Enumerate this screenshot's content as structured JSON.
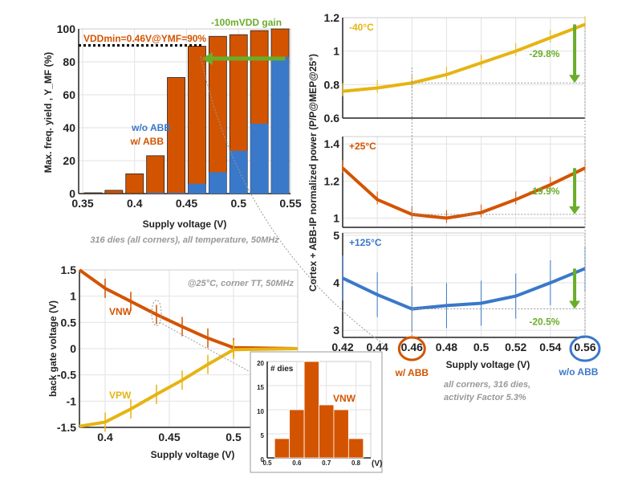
{
  "colors": {
    "orange": "#d35400",
    "blue": "#3a78c9",
    "yellow": "#e6b412",
    "green": "#6aad2a",
    "grid": "#e2e2e2"
  },
  "chart_data": [
    {
      "type": "bar",
      "id": "yield",
      "ylabel": "Max. freq. yield , Y_MF (%)",
      "xlabel": "Supply voltage (V)",
      "xlim": [
        0.35,
        0.55
      ],
      "ylim": [
        0,
        100
      ],
      "xticks": [
        0.35,
        0.4,
        0.45,
        0.5,
        0.55
      ],
      "yticks": [
        0,
        20,
        40,
        60,
        80,
        100
      ],
      "categories": [
        0.36,
        0.38,
        0.4,
        0.42,
        0.44,
        0.46,
        0.48,
        0.5,
        0.52,
        0.54
      ],
      "series": [
        {
          "name": "w/ ABB",
          "values": [
            0.5,
            2,
            12,
            23,
            70.5,
            89.5,
            95.5,
            96.5,
            99,
            100
          ]
        },
        {
          "name": "w/o ABB",
          "values": [
            0,
            0,
            0,
            0.5,
            0.5,
            6,
            13,
            26,
            42.5,
            83
          ]
        }
      ],
      "annotations": {
        "vddmin": "VDDmin=0.46V@YMF=90%",
        "gain": "-100mVDD gain",
        "footnote": "316 dies (all corners), all temperature, 50MHz"
      },
      "threshold": 90,
      "grid": true
    },
    {
      "type": "line",
      "id": "power",
      "ylabel": "Cortex + ABB-IP normalized power (P/P@MEP@25°)",
      "xlabel": "Supply voltage (V)",
      "xlim": [
        0.42,
        0.56
      ],
      "xticks": [
        0.42,
        0.44,
        0.46,
        0.48,
        0.5,
        0.52,
        0.54,
        0.56
      ],
      "x": [
        0.42,
        0.44,
        0.46,
        0.48,
        0.5,
        0.52,
        0.54,
        0.56
      ],
      "panels": [
        {
          "name": "-40°C",
          "ylim": [
            0.6,
            1.2
          ],
          "yticks": [
            0.6,
            0.8,
            1,
            1.2
          ],
          "values": [
            0.76,
            0.78,
            0.81,
            0.86,
            0.93,
            1.0,
            1.08,
            1.16
          ],
          "reduction": "-29.8%",
          "color": "yellow"
        },
        {
          "name": "+25°C",
          "ylim": [
            0.95,
            1.44
          ],
          "yticks": [
            1,
            1.2,
            1.4
          ],
          "values": [
            1.27,
            1.1,
            1.02,
            1.0,
            1.03,
            1.1,
            1.18,
            1.27
          ],
          "reduction": "-19.9%",
          "color": "orange"
        },
        {
          "name": "+125°C",
          "ylim": [
            2.85,
            5.05
          ],
          "yticks": [
            3,
            4,
            5
          ],
          "values": [
            4.1,
            3.75,
            3.45,
            3.52,
            3.57,
            3.72,
            4.0,
            4.3
          ],
          "reduction": "-20.5%",
          "color": "blue"
        }
      ],
      "annotations": {
        "with_abb": "w/ ABB",
        "without_abb": "w/o ABB",
        "note1": "all corners, 316 dies,",
        "note2": "activity Factor 5.3%"
      },
      "grid": true
    },
    {
      "type": "line",
      "id": "backgate",
      "ylabel": "back gate voltage (V)",
      "xlabel": "Supply voltage (V)",
      "xlim": [
        0.38,
        0.55
      ],
      "ylim": [
        -1.5,
        1.5
      ],
      "xticks": [
        0.4,
        0.45,
        0.5
      ],
      "yticks": [
        -1.5,
        -1,
        -0.5,
        0,
        0.5,
        1,
        1.5
      ],
      "x": [
        0.38,
        0.4,
        0.42,
        0.44,
        0.46,
        0.48,
        0.5,
        0.55
      ],
      "series": [
        {
          "name": "VNW",
          "values": [
            1.5,
            1.15,
            0.9,
            0.65,
            0.42,
            0.2,
            0.02,
            0
          ]
        },
        {
          "name": "VPW",
          "values": [
            -1.48,
            -1.4,
            -1.15,
            -0.87,
            -0.6,
            -0.3,
            -0.02,
            0
          ]
        }
      ],
      "annotations": {
        "cond": "@25°C, corner TT, 50MHz"
      },
      "grid": true
    },
    {
      "type": "bar",
      "id": "hist",
      "title": "# dies",
      "label": "VNW",
      "xunit": "(V)",
      "xlim": [
        0.5,
        0.85
      ],
      "ylim": [
        0,
        20
      ],
      "xticks": [
        0.5,
        0.6,
        0.7,
        0.8
      ],
      "yticks": [
        0,
        5,
        10,
        15,
        20
      ],
      "categories": [
        0.55,
        0.6,
        0.65,
        0.7,
        0.75,
        0.8
      ],
      "values": [
        4,
        10,
        20,
        11,
        10,
        4
      ]
    }
  ]
}
